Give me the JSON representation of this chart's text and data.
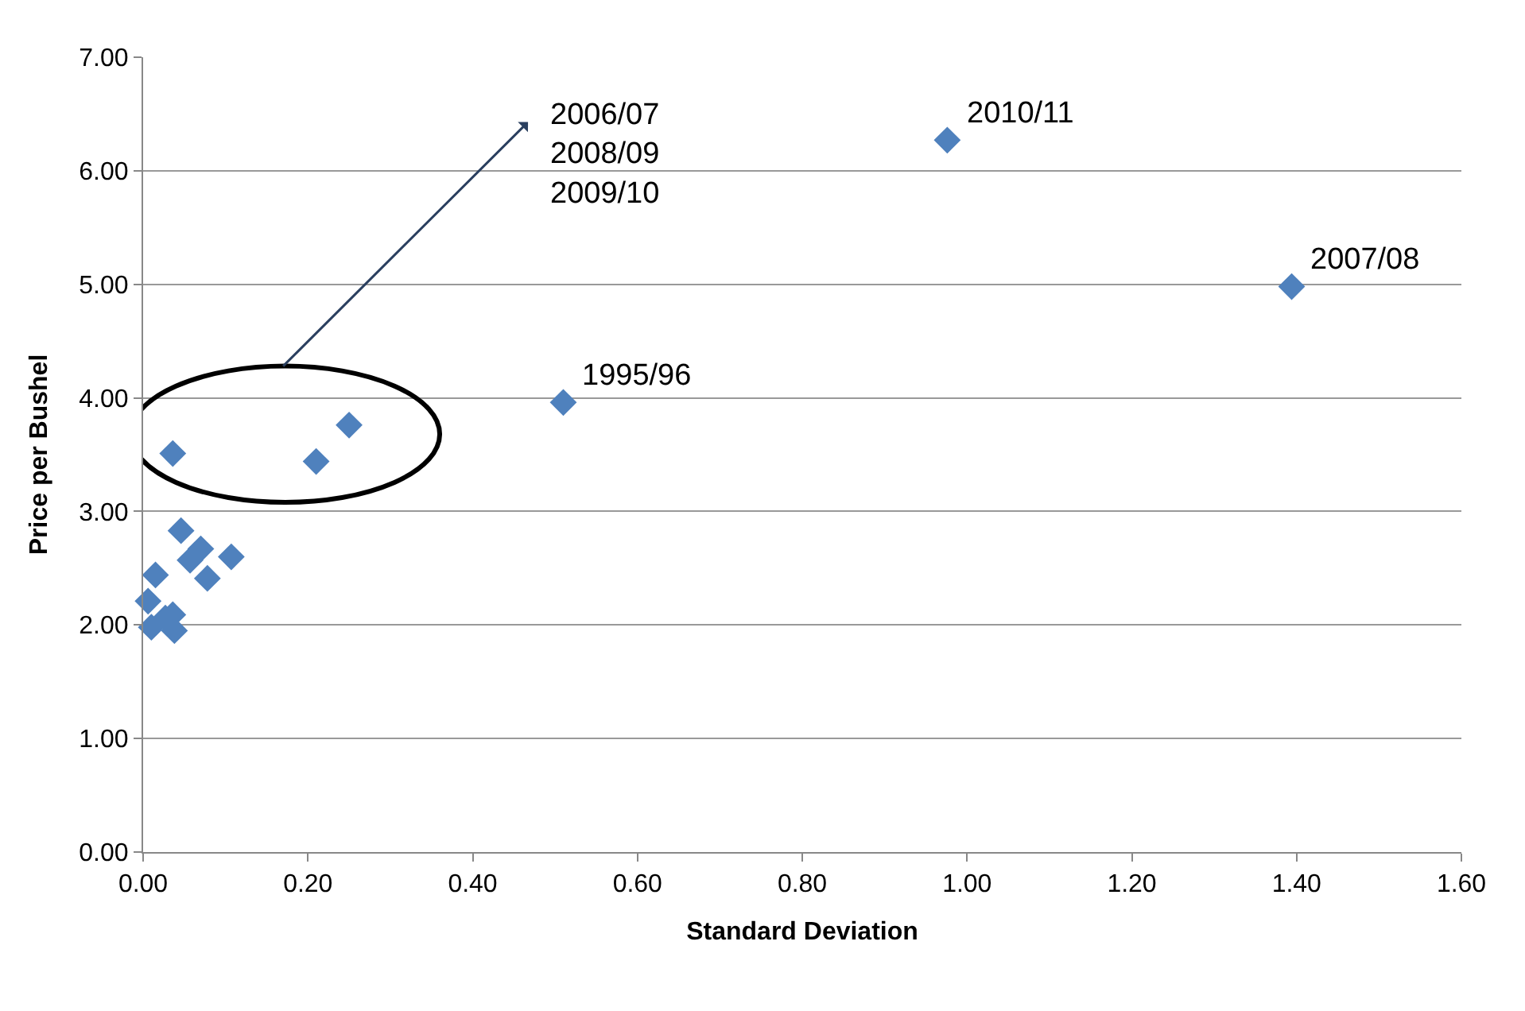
{
  "chart_data": {
    "type": "scatter",
    "xlabel": "Standard Deviation",
    "ylabel": "Price per Bushel",
    "x": [
      0.036,
      0.21,
      0.25,
      0.046,
      0.107,
      0.07,
      0.078,
      0.057,
      0.015,
      0.006,
      0.01,
      0.036,
      0.038,
      0.027,
      0.51,
      0.976,
      1.394
    ],
    "series": [
      {
        "color": "#4f81bd",
        "values": [
          3.51,
          3.44,
          3.76,
          2.83,
          2.6,
          2.67,
          2.41,
          2.57,
          2.44,
          2.21,
          1.98,
          2.09,
          1.95,
          2.06,
          3.96,
          6.27,
          4.98
        ]
      }
    ],
    "xlim": [
      0,
      1.6
    ],
    "xticks": [
      {
        "value": 0,
        "label": "0.00"
      },
      {
        "value": 0.2,
        "label": "0.20"
      },
      {
        "value": 0.4,
        "label": "0.40"
      },
      {
        "value": 0.6,
        "label": "0.60"
      },
      {
        "value": 0.8,
        "label": "0.80"
      },
      {
        "value": 1.0,
        "label": "1.00"
      },
      {
        "value": 1.2,
        "label": "1.20"
      },
      {
        "value": 1.4,
        "label": "1.40"
      },
      {
        "value": 1.6,
        "label": "1.60"
      }
    ],
    "ylim": [
      0,
      7
    ],
    "yticks": [
      {
        "value": 0,
        "label": "0.00"
      },
      {
        "value": 1,
        "label": "1.00"
      },
      {
        "value": 2,
        "label": "2.00"
      },
      {
        "value": 3,
        "label": "3.00"
      },
      {
        "value": 4,
        "label": "4.00"
      },
      {
        "value": 5,
        "label": "5.00"
      },
      {
        "value": 6,
        "label": "6.00"
      },
      {
        "value": 7,
        "label": "7.00"
      }
    ],
    "grid": "y",
    "marker": "diamond",
    "annotations": [
      {
        "text": "1995/96",
        "x": 0.51,
        "y": 3.96
      },
      {
        "text": "2010/11",
        "x": 0.976,
        "y": 6.27
      },
      {
        "text": "2007/08",
        "x": 1.394,
        "y": 4.98
      },
      "2006/07\n2008/09\n2009/10"
    ]
  }
}
